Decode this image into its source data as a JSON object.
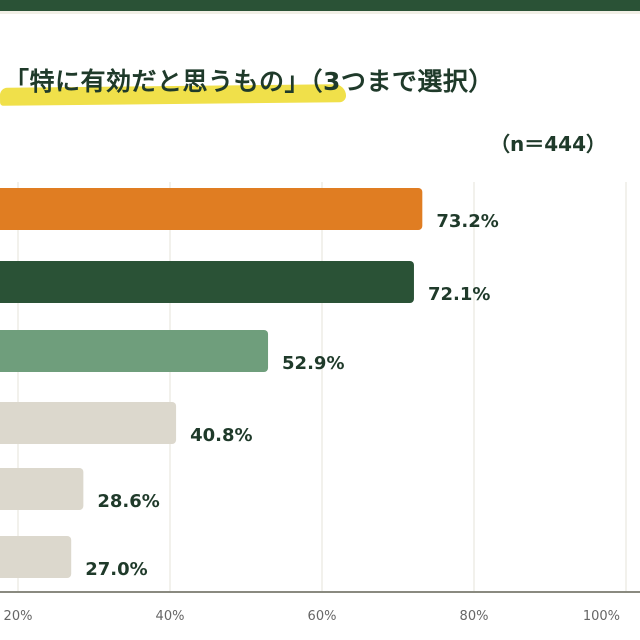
{
  "chart_data": {
    "type": "bar",
    "orientation": "horizontal",
    "title": "「特に有効だと思うもの」（3つまで選択）",
    "sample": "（n＝444）",
    "values": [
      73.2,
      72.1,
      52.9,
      40.8,
      28.6,
      27.0
    ],
    "value_labels": [
      "73.2%",
      "72.1%",
      "52.9%",
      "40.8%",
      "28.6%",
      "27.0%"
    ],
    "bar_colors": [
      "#e07d22",
      "#2a5236",
      "#6f9e7c",
      "#dcd8cd",
      "#dcd8cd",
      "#dcd8cd"
    ],
    "x_ticks": [
      20,
      40,
      60,
      80,
      100
    ],
    "x_tick_labels": [
      "20%",
      "40%",
      "60%",
      "80%",
      "100%"
    ],
    "xlim": [
      0,
      100
    ],
    "grid": true
  },
  "colors": {
    "top_band": "#2a5236",
    "highlight": "#f0e04a",
    "text": "#1f3a2a"
  }
}
